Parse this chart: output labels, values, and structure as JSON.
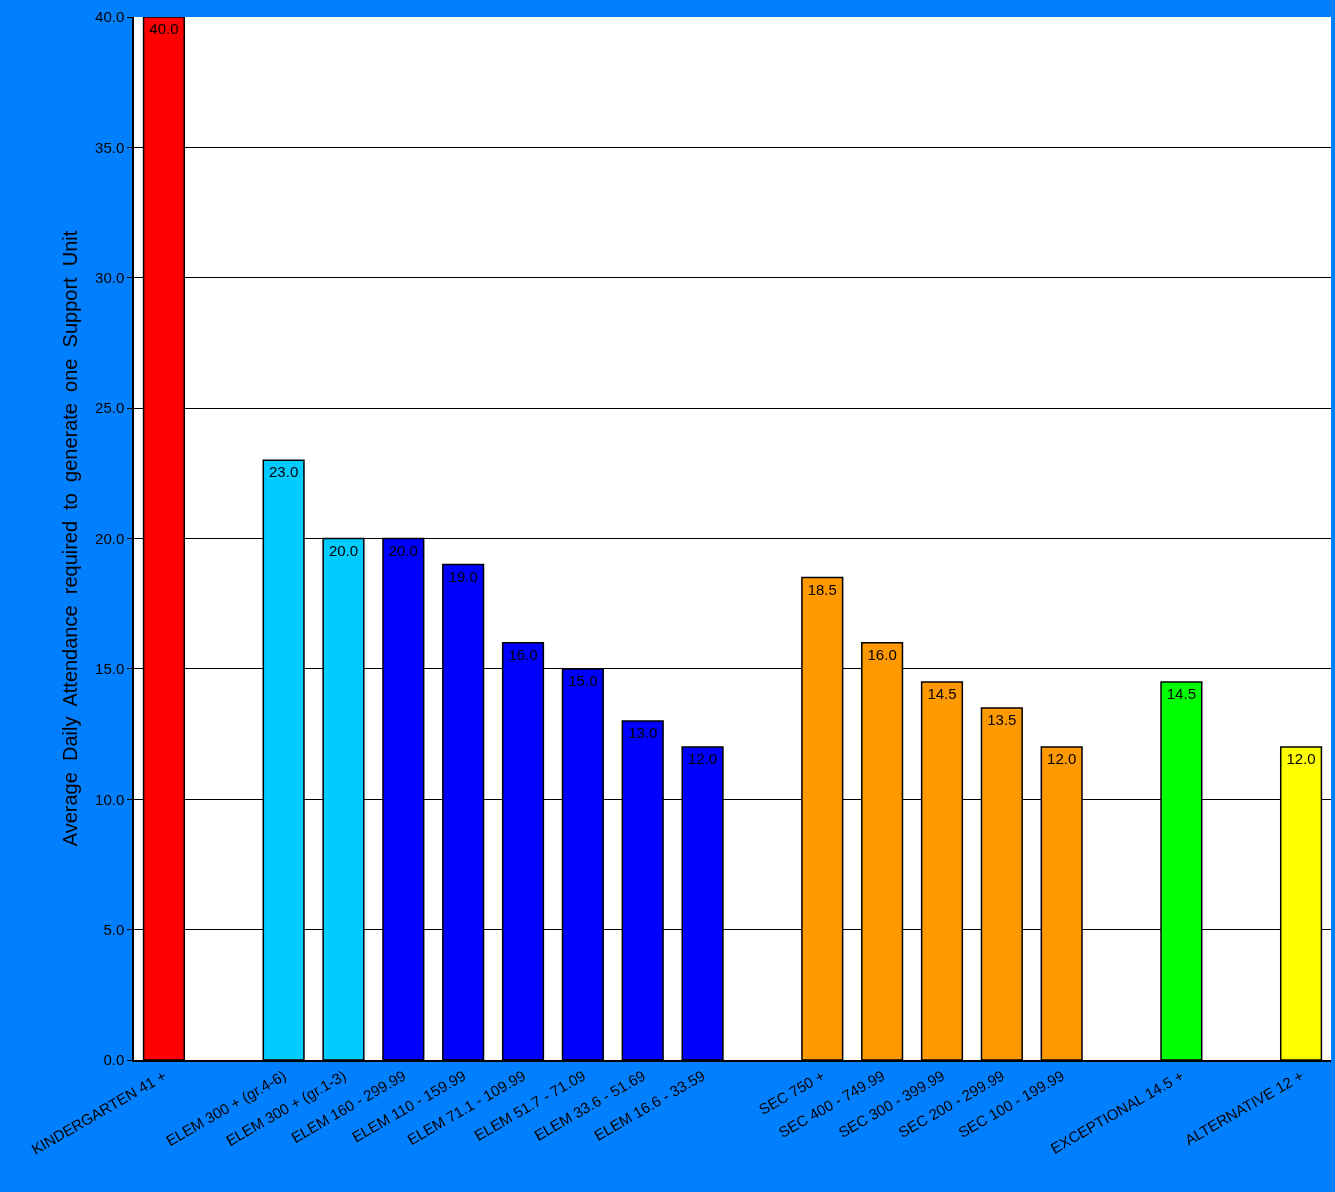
{
  "chart_data": {
    "type": "bar",
    "ylabel": "Average  Daily  Attendance  required  to  generate  one  Support  Unit",
    "categories": [
      "KINDERGARTEN 41 +",
      null,
      "ELEM 300 + (gr.4-6)",
      "ELEM 300 + (gr.1-3)",
      "ELEM 160 - 299.99",
      "ELEM 110 - 159.99",
      "ELEM 71.1 - 109.99",
      "ELEM 51.7 - 71.09",
      "ELEM 33.6 - 51.69",
      "ELEM 16.6 - 33.59",
      null,
      "SEC 750 +",
      "SEC 400 - 749.99",
      "SEC 300 - 399.99",
      "SEC 200 - 299.99",
      "SEC 100 - 199.99",
      null,
      "EXCEPTIONAL 14.5 +",
      null,
      "ALTERNATIVE 12 +"
    ],
    "values": [
      40.0,
      null,
      23.0,
      20.0,
      20.0,
      19.0,
      16.0,
      15.0,
      13.0,
      12.0,
      null,
      18.5,
      16.0,
      14.5,
      13.5,
      12.0,
      null,
      14.5,
      null,
      12.0
    ],
    "value_labels": [
      "40.0",
      null,
      "23.0",
      "20.0",
      "20.0",
      "19.0",
      "16.0",
      "15.0",
      "13.0",
      "12.0",
      null,
      "18.5",
      "16.0",
      "14.5",
      "13.5",
      "12.0",
      null,
      "14.5",
      null,
      "12.0"
    ],
    "colors": [
      "#ff0000",
      null,
      "#00ccff",
      "#00ccff",
      "#0000ff",
      "#0000ff",
      "#0000ff",
      "#0000ff",
      "#0000ff",
      "#0000ff",
      null,
      "#ff9900",
      "#ff9900",
      "#ff9900",
      "#ff9900",
      "#ff9900",
      null,
      "#00ff00",
      null,
      "#ffff00"
    ],
    "ylim": [
      0,
      40
    ],
    "yticks": [
      {
        "value": 0,
        "label": "0.0"
      },
      {
        "value": 5,
        "label": "5.0"
      },
      {
        "value": 10,
        "label": "10.0"
      },
      {
        "value": 15,
        "label": "15.0"
      },
      {
        "value": 20,
        "label": "20.0"
      },
      {
        "value": 25,
        "label": "25.0"
      },
      {
        "value": 30,
        "label": "30.0"
      },
      {
        "value": 35,
        "label": "35.0"
      },
      {
        "value": 40,
        "label": "40.0"
      }
    ],
    "grid": "y"
  }
}
